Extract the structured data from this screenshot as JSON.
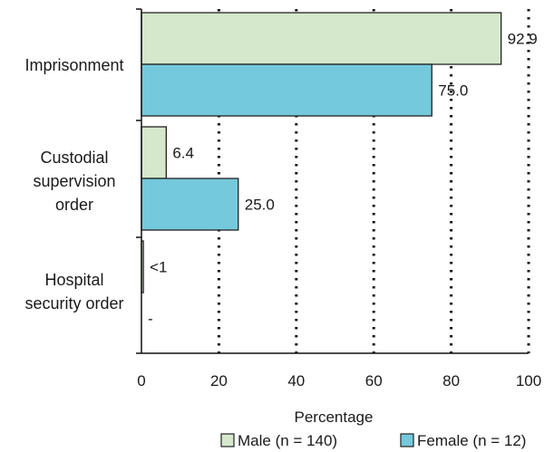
{
  "chart_data": {
    "type": "bar",
    "orientation": "horizontal",
    "categories": [
      [
        "Imprisonment"
      ],
      [
        "Custodial",
        "supervision",
        "order"
      ],
      [
        "Hospital",
        "security order"
      ]
    ],
    "series": [
      {
        "name": "Male (n = 140)",
        "values": [
          92.9,
          6.4,
          0.5
        ],
        "labels": [
          "92.9",
          "6.4",
          "<1"
        ],
        "color": "#d5e8cc"
      },
      {
        "name": "Female (n = 12)",
        "values": [
          75.0,
          25.0,
          0
        ],
        "labels": [
          "75.0",
          "25.0",
          "-"
        ],
        "color": "#74c9dc"
      }
    ],
    "xlabel": "Percentage",
    "xlim": [
      0,
      100
    ],
    "xticks": [
      0,
      20,
      40,
      60,
      80,
      100
    ],
    "grid": "vertical dotted",
    "legend_position": "bottom"
  }
}
